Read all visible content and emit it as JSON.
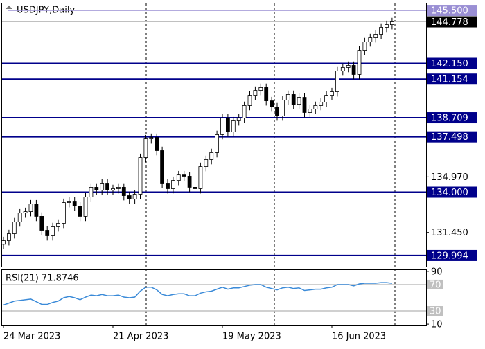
{
  "chart_data": {
    "type": "candlestick",
    "title": "USDJPY,Daily",
    "categories": [
      "24 Mar 2023",
      null,
      null,
      null,
      null,
      null,
      null,
      null,
      null,
      null,
      null,
      null,
      null,
      null,
      null,
      null,
      null,
      null,
      null,
      null,
      "21 Apr 2023",
      null,
      null,
      null,
      null,
      null,
      null,
      null,
      null,
      null,
      null,
      null,
      null,
      null,
      null,
      null,
      null,
      null,
      null,
      null,
      "19 May 2023",
      null,
      null,
      null,
      null,
      null,
      null,
      null,
      null,
      null,
      null,
      null,
      null,
      null,
      null,
      null,
      null,
      null,
      null,
      null,
      "16 Jun 2023",
      null,
      null,
      null,
      null,
      null,
      null,
      null,
      null,
      null,
      null,
      null
    ],
    "open": [
      130.7,
      130.93,
      131.37,
      132.12,
      132.68,
      132.77,
      133.25,
      132.47,
      131.59,
      131.24,
      131.81,
      132.03,
      133.34,
      133.43,
      133.12,
      132.47,
      133.69,
      134.31,
      134.13,
      134.57,
      134.13,
      134.22,
      134.31,
      133.78,
      133.56,
      133.87,
      136.19,
      137.37,
      137.46,
      136.63,
      134.57,
      134.22,
      134.74,
      135.09,
      135.01,
      134.31,
      134.22,
      135.62,
      136.06,
      136.5,
      137.64,
      138.69,
      137.81,
      138.51,
      138.69,
      139.48,
      140.13,
      140.44,
      140.62,
      139.78,
      139.39,
      138.82,
      139.83,
      140.18,
      139.56,
      140.0,
      139.04,
      139.26,
      139.48,
      139.7,
      140.13,
      140.35,
      141.67,
      141.89,
      142.02,
      141.45,
      142.98,
      143.51,
      143.77,
      143.99,
      144.43,
      144.6
    ],
    "high": [
      131.18,
      131.62,
      132.37,
      132.93,
      133.02,
      133.5,
      133.5,
      132.72,
      131.84,
      132.06,
      132.28,
      133.59,
      133.68,
      133.68,
      133.37,
      133.94,
      134.56,
      134.56,
      134.82,
      134.82,
      134.47,
      134.56,
      134.56,
      134.03,
      134.12,
      136.44,
      137.62,
      137.71,
      137.71,
      136.88,
      134.82,
      134.99,
      135.34,
      135.34,
      135.26,
      134.56,
      135.87,
      136.31,
      136.75,
      137.89,
      138.94,
      138.94,
      138.76,
      138.94,
      139.73,
      140.38,
      140.69,
      140.87,
      140.87,
      140.03,
      139.64,
      140.08,
      140.43,
      140.43,
      140.25,
      140.25,
      139.51,
      139.73,
      139.95,
      140.38,
      140.6,
      141.92,
      142.14,
      142.27,
      142.27,
      143.23,
      143.76,
      144.02,
      144.24,
      144.68,
      144.85,
      145.03
    ],
    "low": [
      130.4,
      130.63,
      131.07,
      131.82,
      132.38,
      132.47,
      132.17,
      131.29,
      130.94,
      130.94,
      131.51,
      131.73,
      133.04,
      132.82,
      132.17,
      132.17,
      133.39,
      133.83,
      133.83,
      133.83,
      133.83,
      133.92,
      133.48,
      133.26,
      133.26,
      133.57,
      135.89,
      137.07,
      136.33,
      134.27,
      133.92,
      133.92,
      134.44,
      134.71,
      134.01,
      133.92,
      133.92,
      135.32,
      135.76,
      136.2,
      137.34,
      137.51,
      137.51,
      138.21,
      138.39,
      139.18,
      139.83,
      140.14,
      139.48,
      139.09,
      138.52,
      138.52,
      139.53,
      139.26,
      139.26,
      138.74,
      138.74,
      138.96,
      139.18,
      139.4,
      139.83,
      140.05,
      141.37,
      141.59,
      141.15,
      141.15,
      142.68,
      143.21,
      143.47,
      143.69,
      144.13,
      144.3
    ],
    "close": [
      130.93,
      131.37,
      132.12,
      132.68,
      132.77,
      133.25,
      132.47,
      131.59,
      131.24,
      131.81,
      132.03,
      133.34,
      133.43,
      133.12,
      132.47,
      133.69,
      134.31,
      134.13,
      134.57,
      134.13,
      134.22,
      134.31,
      133.78,
      133.56,
      133.87,
      136.19,
      137.37,
      137.46,
      136.63,
      134.57,
      134.22,
      134.74,
      135.09,
      135.01,
      134.31,
      134.22,
      135.62,
      136.06,
      136.5,
      137.64,
      138.69,
      137.81,
      138.51,
      138.69,
      139.48,
      140.13,
      140.44,
      140.62,
      139.78,
      139.39,
      138.82,
      139.83,
      140.18,
      139.56,
      140.0,
      139.04,
      139.26,
      139.48,
      139.7,
      140.13,
      140.35,
      141.67,
      141.89,
      142.02,
      141.45,
      142.98,
      143.51,
      143.77,
      143.99,
      144.43,
      144.6,
      144.778
    ],
    "up_color": "#ffffff",
    "down_color": "#000000",
    "ylim": [
      129.29,
      145.94
    ],
    "yticks": [
      {
        "value": 134.97,
        "label": "134.970"
      },
      {
        "value": 131.45,
        "label": "131.450"
      }
    ],
    "levels": [
      {
        "value": 142.15,
        "label": "142.150"
      },
      {
        "value": 141.154,
        "label": "141.154"
      },
      {
        "value": 138.709,
        "label": "138.709"
      },
      {
        "value": 137.498,
        "label": "137.498"
      },
      {
        "value": 134.0,
        "label": "134.000"
      },
      {
        "value": 129.994,
        "label": "129.994"
      }
    ],
    "level_color": "#00008b",
    "resistance": {
      "value": 145.5,
      "label": "145.500"
    },
    "resistance_color": "#9a8fd4",
    "current_price": {
      "value": 144.778,
      "label": "144.778"
    },
    "rsi": {
      "label": "RSI(21) 71.8746",
      "color": "#3a8ad8",
      "values": [
        39,
        42,
        45,
        46,
        47,
        48,
        44,
        40,
        40,
        43,
        45,
        50,
        52,
        50,
        47,
        51,
        54,
        53,
        55,
        53,
        53,
        54,
        51,
        50,
        51,
        60,
        66,
        66,
        62,
        55,
        53,
        55,
        56,
        56,
        53,
        53,
        57,
        59,
        60,
        63,
        66,
        63,
        65,
        65,
        67,
        69,
        70,
        70,
        66,
        64,
        62,
        65,
        66,
        64,
        65,
        61,
        62,
        63,
        63,
        65,
        66,
        70,
        70,
        70,
        68,
        71,
        72,
        72,
        72,
        73,
        73,
        71.8746
      ],
      "ylim": [
        8,
        92
      ],
      "yticks": [
        90,
        10
      ],
      "levels": [
        70,
        30
      ]
    }
  }
}
